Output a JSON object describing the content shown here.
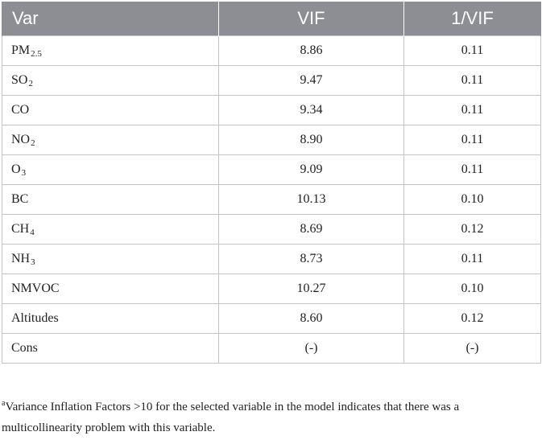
{
  "table": {
    "headers": {
      "var": "Var",
      "vif": "VIF",
      "inverse_vif": "1/VIF"
    },
    "rows": [
      {
        "name": "PM",
        "sub": "2.5",
        "vif": "8.86",
        "inv": "0.11"
      },
      {
        "name": "SO",
        "sub": "2",
        "vif": "9.47",
        "inv": "0.11"
      },
      {
        "name": "CO",
        "sub": "",
        "vif": "9.34",
        "inv": "0.11"
      },
      {
        "name": "NO",
        "sub": "2",
        "vif": "8.90",
        "inv": "0.11"
      },
      {
        "name": "O",
        "sub": "3",
        "vif": "9.09",
        "inv": "0.11"
      },
      {
        "name": "BC",
        "sub": "",
        "vif": "10.13",
        "inv": "0.10"
      },
      {
        "name": "CH",
        "sub": "4",
        "vif": "8.69",
        "inv": "0.12"
      },
      {
        "name": "NH",
        "sub": "3",
        "vif": "8.73",
        "inv": "0.11"
      },
      {
        "name": "NMVOC",
        "sub": "",
        "vif": "10.27",
        "inv": "0.10"
      },
      {
        "name": "Altitudes",
        "sub": "",
        "vif": "8.60",
        "inv": "0.12"
      },
      {
        "name": "Cons",
        "sub": "",
        "vif": "(-)",
        "inv": "(-)"
      }
    ]
  },
  "footnote": {
    "marker": "a",
    "text": "Variance Inflation Factors >10 for the selected variable in the model indicates that there was a multicollinearity problem with this variable."
  }
}
